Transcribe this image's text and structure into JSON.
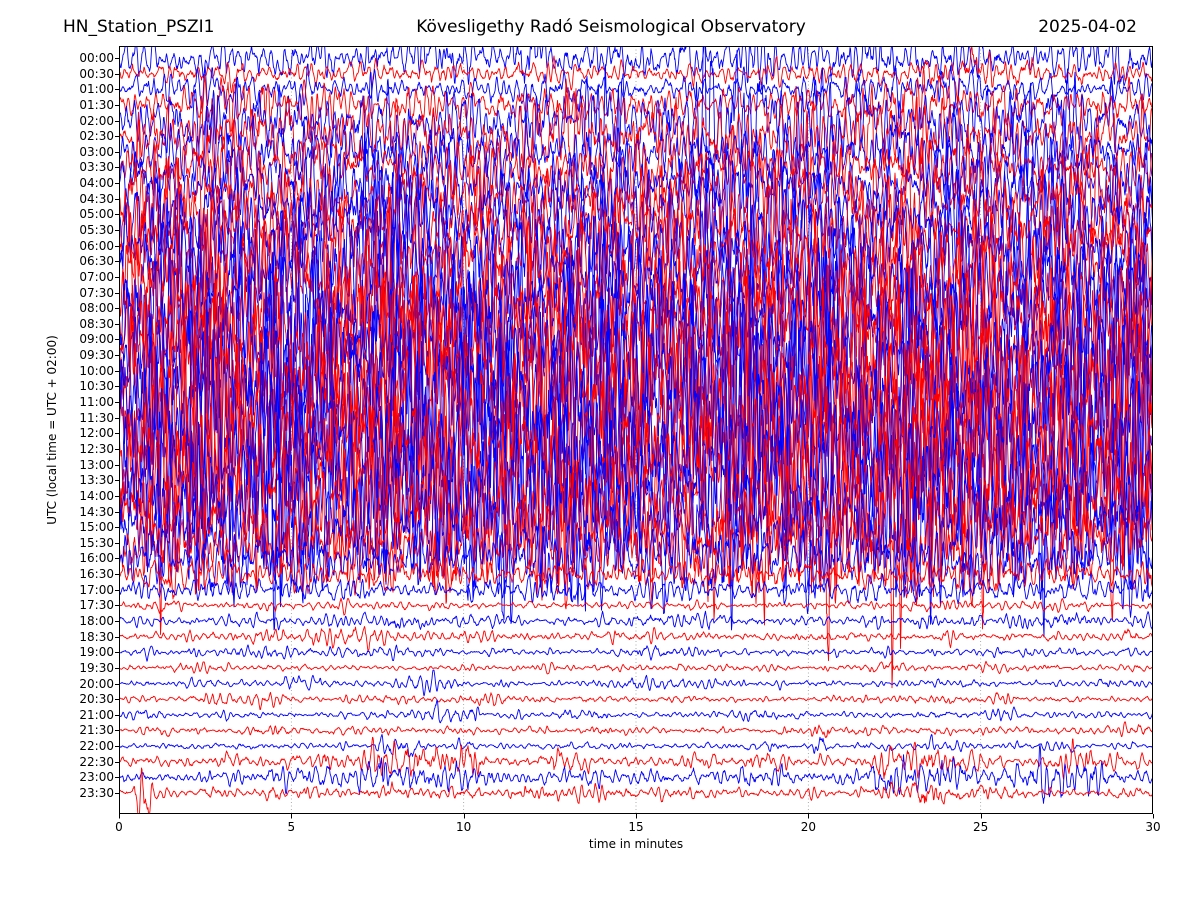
{
  "header": {
    "station": "HN_Station_PSZI1",
    "observatory": "Kövesligethy Radó Seismological Observatory",
    "date": "2025-04-02"
  },
  "chart_data": {
    "type": "line",
    "subtype": "helicorder-seismogram",
    "title": "HN_Station_PSZI1 — Kövesligethy Radó Seismological Observatory — 2025-04-02",
    "xlabel": "time in minutes",
    "ylabel": "UTC (local time = UTC + 02:00)",
    "x_range": [
      0,
      30
    ],
    "x_ticks": [
      0,
      5,
      10,
      15,
      20,
      25,
      30
    ],
    "grid_minutes": [
      5,
      10,
      15,
      20,
      25
    ],
    "grid_style": "dotted",
    "colors": {
      "even_row": "#0000ff",
      "odd_row": "#ff0000",
      "grid": "#999999",
      "axis": "#000000"
    },
    "rows_are_half_hour_traces": true,
    "rows": [
      {
        "label": "00:00",
        "color": "#0000ff",
        "rel_amp": 22,
        "events": []
      },
      {
        "label": "00:30",
        "color": "#ff0000",
        "rel_amp": 13,
        "events": []
      },
      {
        "label": "01:00",
        "color": "#0000ff",
        "rel_amp": 14,
        "events": []
      },
      {
        "label": "01:30",
        "color": "#ff0000",
        "rel_amp": 22,
        "events": []
      },
      {
        "label": "02:00",
        "color": "#0000ff",
        "rel_amp": 40,
        "events": []
      },
      {
        "label": "02:30",
        "color": "#ff0000",
        "rel_amp": 38,
        "events": []
      },
      {
        "label": "03:00",
        "color": "#0000ff",
        "rel_amp": 33,
        "events": []
      },
      {
        "label": "03:30",
        "color": "#ff0000",
        "rel_amp": 32,
        "events": []
      },
      {
        "label": "04:00",
        "color": "#0000ff",
        "rel_amp": 40,
        "events": []
      },
      {
        "label": "04:30",
        "color": "#ff0000",
        "rel_amp": 46,
        "events": []
      },
      {
        "label": "05:00",
        "color": "#0000ff",
        "rel_amp": 52,
        "events": []
      },
      {
        "label": "05:30",
        "color": "#ff0000",
        "rel_amp": 54,
        "events": []
      },
      {
        "label": "06:00",
        "color": "#0000ff",
        "rel_amp": 58,
        "events": []
      },
      {
        "label": "06:30",
        "color": "#ff0000",
        "rel_amp": 62,
        "events": []
      },
      {
        "label": "07:00",
        "color": "#0000ff",
        "rel_amp": 64,
        "events": []
      },
      {
        "label": "07:30",
        "color": "#ff0000",
        "rel_amp": 68,
        "events": []
      },
      {
        "label": "08:00",
        "color": "#0000ff",
        "rel_amp": 74,
        "events": []
      },
      {
        "label": "08:30",
        "color": "#ff0000",
        "rel_amp": 80,
        "events": []
      },
      {
        "label": "09:00",
        "color": "#0000ff",
        "rel_amp": 86,
        "events": []
      },
      {
        "label": "09:30",
        "color": "#ff0000",
        "rel_amp": 91,
        "events": []
      },
      {
        "label": "10:00",
        "color": "#0000ff",
        "rel_amp": 96,
        "events": []
      },
      {
        "label": "10:30",
        "color": "#ff0000",
        "rel_amp": 100,
        "events": []
      },
      {
        "label": "11:00",
        "color": "#0000ff",
        "rel_amp": 104,
        "events": []
      },
      {
        "label": "11:30",
        "color": "#ff0000",
        "rel_amp": 106,
        "events": []
      },
      {
        "label": "12:00",
        "color": "#0000ff",
        "rel_amp": 106,
        "events": []
      },
      {
        "label": "12:30",
        "color": "#ff0000",
        "rel_amp": 102,
        "events": []
      },
      {
        "label": "13:00",
        "color": "#0000ff",
        "rel_amp": 97,
        "events": []
      },
      {
        "label": "13:30",
        "color": "#ff0000",
        "rel_amp": 91,
        "events": []
      },
      {
        "label": "14:00",
        "color": "#0000ff",
        "rel_amp": 84,
        "events": []
      },
      {
        "label": "14:30",
        "color": "#ff0000",
        "rel_amp": 74,
        "events": []
      },
      {
        "label": "15:00",
        "color": "#0000ff",
        "rel_amp": 64,
        "events": []
      },
      {
        "label": "15:30",
        "color": "#ff0000",
        "rel_amp": 50,
        "events": []
      },
      {
        "label": "16:00",
        "color": "#0000ff",
        "rel_amp": 32,
        "events": []
      },
      {
        "label": "16:30",
        "color": "#ff0000",
        "rel_amp": 16,
        "events": []
      },
      {
        "label": "17:00",
        "color": "#0000ff",
        "rel_amp": 13,
        "events": []
      },
      {
        "label": "17:30",
        "color": "#ff0000",
        "rel_amp": 4.5,
        "events": []
      },
      {
        "label": "18:00",
        "color": "#0000ff",
        "rel_amp": 6.5,
        "events": []
      },
      {
        "label": "18:30",
        "color": "#ff0000",
        "rel_amp": 5.5,
        "events": []
      },
      {
        "label": "19:00",
        "color": "#0000ff",
        "rel_amp": 4.2,
        "events": []
      },
      {
        "label": "19:30",
        "color": "#ff0000",
        "rel_amp": 3.6,
        "events": []
      },
      {
        "label": "20:00",
        "color": "#0000ff",
        "rel_amp": 4.2,
        "events": [
          [
            8.0,
            9.6,
            2.0
          ]
        ]
      },
      {
        "label": "20:30",
        "color": "#ff0000",
        "rel_amp": 4.2,
        "events": []
      },
      {
        "label": "21:00",
        "color": "#0000ff",
        "rel_amp": 4.2,
        "events": [
          [
            9.2,
            10.4,
            3.2
          ]
        ]
      },
      {
        "label": "21:30",
        "color": "#ff0000",
        "rel_amp": 4.6,
        "events": [
          [
            20.15,
            20.55,
            2.8
          ]
        ]
      },
      {
        "label": "22:00",
        "color": "#0000ff",
        "rel_amp": 4.2,
        "events": [
          [
            7.5,
            8.5,
            2.3
          ],
          [
            20.2,
            20.5,
            3.5
          ]
        ]
      },
      {
        "label": "22:30",
        "color": "#ff0000",
        "rel_amp": 7.5,
        "events": [
          [
            7.4,
            10.6,
            2.8
          ],
          [
            12.6,
            13.6,
            2.0
          ],
          [
            18.4,
            19.4,
            1.8
          ],
          [
            22.0,
            24.2,
            3.0
          ],
          [
            26.8,
            28.2,
            2.2
          ]
        ]
      },
      {
        "label": "23:00",
        "color": "#0000ff",
        "rel_amp": 8.5,
        "events": [
          [
            7.6,
            10.4,
            2.4
          ],
          [
            13.0,
            14.0,
            1.6
          ],
          [
            21.8,
            24.6,
            2.8
          ],
          [
            26.5,
            28.6,
            2.0
          ]
        ]
      },
      {
        "label": "23:30",
        "color": "#ff0000",
        "rel_amp": 5.5,
        "events": [
          [
            0.55,
            0.85,
            4.5
          ],
          [
            22.2,
            24.0,
            1.8
          ]
        ]
      }
    ]
  }
}
